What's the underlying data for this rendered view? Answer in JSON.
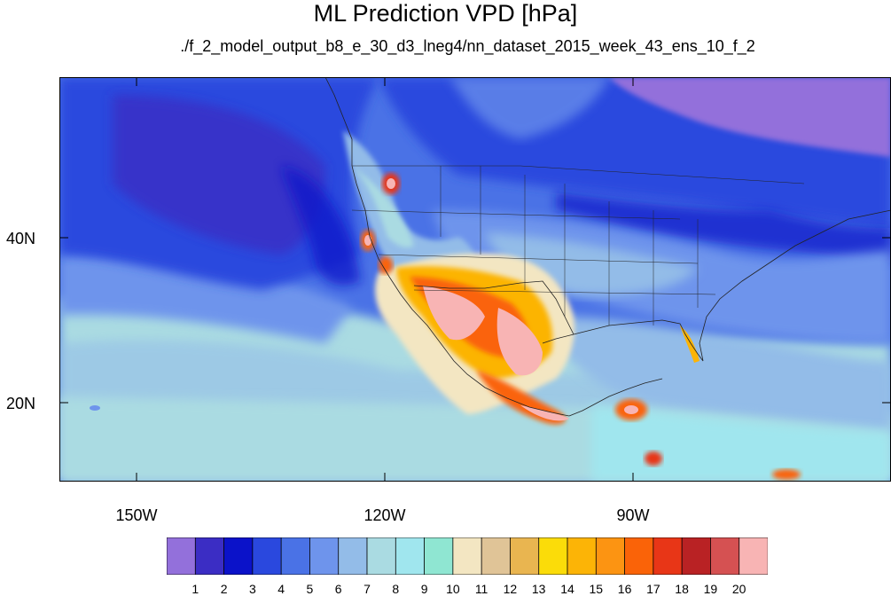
{
  "title": "ML Prediction VPD [hPa]",
  "subtitle": "./f_2_model_output_b8_e_30_d3_lneg4/nn_dataset_2015_week_43_ens_10_f_2",
  "lon_labels": [
    "150W",
    "120W",
    "90W"
  ],
  "lat_labels": [
    "40N",
    "20N"
  ],
  "colorbar": {
    "labels": [
      "1",
      "2",
      "3",
      "4",
      "5",
      "6",
      "7",
      "8",
      "9",
      "10",
      "11",
      "12",
      "13",
      "14",
      "15",
      "16",
      "17",
      "18",
      "19",
      "20"
    ],
    "colors": [
      "#9370db",
      "#3b2dc4",
      "#0b12c9",
      "#2a48de",
      "#4a72e6",
      "#6e94ec",
      "#93bce8",
      "#aadbe2",
      "#a0e6ee",
      "#8fe6d2",
      "#f3e6c2",
      "#e0c497",
      "#e9b550",
      "#fbdc09",
      "#fcb406",
      "#fc9412",
      "#fa6308",
      "#e83617",
      "#b92224",
      "#d55152",
      "#f8b4b4"
    ]
  },
  "colors": {
    "ocean_deep": "#2a48de",
    "ocean_mid": "#4a72e6",
    "ocean_light": "#6e94ec",
    "subtropic": "#aadbe2",
    "land_hot": "#f8b4b4",
    "land_warm": "#fc9412",
    "border": "#222222"
  }
}
